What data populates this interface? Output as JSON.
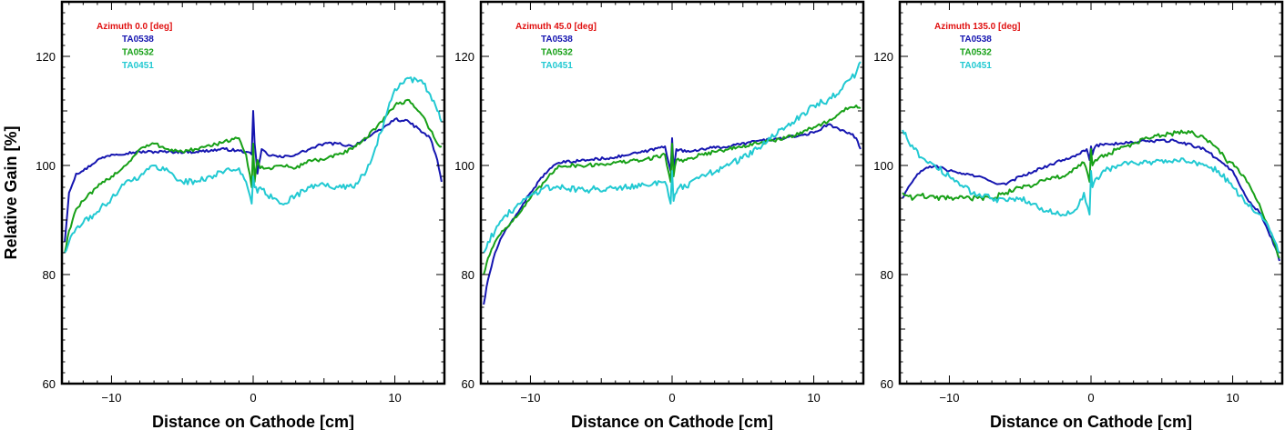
{
  "colors": {
    "TA0538": "#1515b0",
    "TA0532": "#17a017",
    "TA0451": "#22c9d2",
    "annotation": "#e01010"
  },
  "chart_data": [
    {
      "type": "line",
      "annotation": "Azimuth 0.0 [deg]",
      "xlabel": "Distance on Cathode [cm]",
      "ylabel": "Relative Gain [%]",
      "xlim": [
        -13.5,
        13.5
      ],
      "ylim": [
        60,
        130
      ],
      "xticks": [
        -10,
        0,
        10
      ],
      "yticks": [
        60,
        80,
        100,
        120
      ],
      "series": [
        {
          "name": "TA0538",
          "x": [
            -13.3,
            -13,
            -12.5,
            -12,
            -11,
            -10,
            -8,
            -6,
            -4,
            -2,
            -0.5,
            -0.1,
            0,
            0.1,
            0.3,
            0.6,
            1,
            2,
            3,
            4,
            5,
            6,
            7,
            8,
            9,
            10,
            11,
            12,
            12.5,
            13,
            13.3
          ],
          "y": [
            86,
            95,
            98.5,
            99,
            101,
            102,
            102.5,
            102.5,
            102.5,
            103,
            102.5,
            102,
            110,
            104,
            98.5,
            103,
            102,
            101.5,
            102,
            103,
            104,
            104,
            103.5,
            105,
            106.5,
            108.5,
            108,
            106,
            105,
            101,
            97
          ]
        },
        {
          "name": "TA0532",
          "x": [
            -13.3,
            -13,
            -12.5,
            -12,
            -11,
            -10,
            -9,
            -8,
            -7,
            -6,
            -5,
            -4,
            -3,
            -2,
            -1,
            -0.5,
            -0.1,
            0,
            0.1,
            0.3,
            0.5,
            1,
            2,
            3,
            4,
            5,
            6,
            7,
            8,
            9,
            9.5,
            10,
            11,
            12,
            12.5,
            13,
            13.3
          ],
          "y": [
            84,
            88,
            92,
            93.5,
            96,
            98,
            100,
            103,
            104,
            103,
            102.5,
            103,
            103.5,
            104.5,
            105,
            102,
            96,
            104,
            97,
            101,
            99.5,
            99.5,
            100,
            99.5,
            101,
            101,
            102,
            103,
            105,
            108,
            109.5,
            111,
            112,
            109,
            106.5,
            104,
            103.5
          ],
          "noise": 0.35
        },
        {
          "name": "TA0451",
          "x": [
            -13.3,
            -13,
            -12.5,
            -12,
            -11,
            -10,
            -9,
            -8,
            -7,
            -6,
            -5,
            -4,
            -3,
            -2,
            -1,
            -0.5,
            -0.1,
            0,
            0.1,
            0.3,
            0.5,
            1,
            1.5,
            2,
            3,
            4,
            5,
            6,
            7,
            8,
            9,
            10,
            10.5,
            11,
            12,
            12.5,
            13,
            13.3
          ],
          "y": [
            84,
            86,
            88.5,
            89.5,
            91.5,
            94,
            97,
            98,
            100,
            99,
            97,
            97,
            98,
            99,
            99.5,
            97,
            93,
            98,
            96,
            95,
            96,
            94.5,
            94,
            93,
            94.5,
            96,
            96.5,
            96,
            96,
            99,
            106,
            114,
            115,
            116,
            115,
            113,
            110,
            108
          ],
          "noise": 0.55
        }
      ]
    },
    {
      "type": "line",
      "annotation": "Azimuth 45.0 [deg]",
      "xlabel": "Distance on Cathode [cm]",
      "ylabel": "",
      "xlim": [
        -13.5,
        13.5
      ],
      "ylim": [
        60,
        130
      ],
      "xticks": [
        -10,
        0,
        10
      ],
      "yticks": [
        60,
        80,
        100,
        120
      ],
      "series": [
        {
          "name": "TA0538",
          "x": [
            -13.3,
            -13,
            -12.5,
            -12,
            -11,
            -10,
            -9,
            -8,
            -6,
            -4,
            -2,
            -0.5,
            -0.1,
            0,
            0.1,
            0.3,
            1,
            2,
            4,
            6,
            8,
            9,
            10,
            11,
            11.5,
            12,
            12.5,
            13,
            13.3
          ],
          "y": [
            74.5,
            79,
            84,
            87,
            91,
            95,
            98.5,
            100.5,
            101,
            101.5,
            102.5,
            103.5,
            99,
            105,
            99.5,
            103,
            102.5,
            103,
            103.5,
            104.5,
            105,
            105.5,
            106,
            107.5,
            107,
            106.5,
            106,
            105,
            103
          ]
        },
        {
          "name": "TA0532",
          "x": [
            -13.3,
            -13,
            -12.5,
            -12,
            -11,
            -10,
            -9,
            -8,
            -6,
            -4,
            -2,
            -0.5,
            -0.1,
            0,
            0.1,
            0.3,
            1,
            2,
            4,
            6,
            8,
            10,
            11,
            12,
            13,
            13.3
          ],
          "y": [
            80,
            83,
            86,
            88,
            90.5,
            94,
            97,
            100,
            100,
            100.5,
            101,
            102,
            97,
            104,
            98,
            101,
            101,
            102,
            103,
            104,
            105,
            107,
            108,
            110,
            111,
            110.5
          ],
          "noise": 0.35
        },
        {
          "name": "TA0451",
          "x": [
            -13.3,
            -13,
            -12.5,
            -12,
            -11,
            -10,
            -9,
            -8,
            -6,
            -4,
            -2,
            -0.5,
            -0.1,
            0,
            0.1,
            0.3,
            0.5,
            1,
            2,
            4,
            6,
            8,
            10,
            11,
            12,
            13,
            13.3
          ],
          "y": [
            84,
            86,
            88,
            90,
            92.5,
            94.5,
            96,
            96,
            95.5,
            96,
            96.5,
            97,
            93,
            99,
            93.5,
            95,
            96,
            96,
            98,
            100,
            103,
            107,
            111,
            112,
            114,
            117,
            119
          ],
          "noise": 0.6
        }
      ]
    },
    {
      "type": "line",
      "annotation": "Azimuth 135.0 [deg]",
      "xlabel": "Distance on Cathode [cm]",
      "ylabel": "",
      "xlim": [
        -13.5,
        13.5
      ],
      "ylim": [
        60,
        130
      ],
      "xticks": [
        -10,
        0,
        10
      ],
      "yticks": [
        60,
        80,
        100,
        120
      ],
      "series": [
        {
          "name": "TA0538",
          "x": [
            -13.3,
            -13,
            -12.5,
            -12,
            -11,
            -10,
            -9,
            -8,
            -7,
            -6,
            -5,
            -4,
            -3,
            -2,
            -1,
            -0.3,
            -0.1,
            0,
            0.1,
            0.3,
            1,
            2,
            4,
            6,
            8,
            9,
            10,
            11,
            12,
            12.5,
            13,
            13.3
          ],
          "y": [
            94,
            95.5,
            97.5,
            99,
            100,
            99,
            98.5,
            98,
            97,
            96.5,
            98,
            99,
            100,
            101,
            102,
            103,
            101,
            103.5,
            102,
            103.5,
            104,
            104,
            104.5,
            104.5,
            103,
            101,
            99,
            94,
            91,
            88,
            85,
            82.5
          ]
        },
        {
          "name": "TA0532",
          "x": [
            -13.3,
            -13,
            -12.5,
            -12,
            -11,
            -10,
            -9,
            -8,
            -7,
            -6,
            -5,
            -4,
            -3,
            -2,
            -1,
            -0.5,
            -0.1,
            0,
            0.1,
            0.3,
            1,
            2,
            3,
            4,
            5,
            6,
            7,
            8,
            9,
            9.5,
            10,
            11,
            12,
            12.5,
            13,
            13.3
          ],
          "y": [
            95,
            94.5,
            94,
            94.5,
            94,
            94,
            94,
            94,
            94,
            95,
            96,
            96.5,
            97.5,
            98,
            99.5,
            100.5,
            97,
            103,
            100,
            101,
            102,
            103,
            104,
            105,
            105.5,
            106,
            106,
            105,
            103,
            101,
            100.5,
            97,
            92,
            89,
            85.5,
            83
          ],
          "noise": 0.45
        },
        {
          "name": "TA0451",
          "x": [
            -13.3,
            -13,
            -12.5,
            -12,
            -11,
            -10,
            -9,
            -8,
            -7,
            -6,
            -5,
            -4,
            -3,
            -2,
            -1,
            -0.5,
            -0.1,
            0,
            0.1,
            0.3,
            1,
            2,
            3,
            4,
            5,
            6,
            7,
            8,
            9,
            10,
            11,
            12,
            12.5,
            13,
            13.3
          ],
          "y": [
            106.5,
            105,
            103,
            101.5,
            100,
            98,
            96,
            94.5,
            94,
            93.5,
            94,
            93,
            91.5,
            91,
            92,
            95,
            91,
            99,
            96,
            97.5,
            99,
            100,
            100.5,
            100.5,
            101,
            101,
            100.5,
            100,
            99,
            96,
            93,
            91,
            89,
            86,
            84
          ],
          "noise": 0.55
        }
      ]
    }
  ]
}
